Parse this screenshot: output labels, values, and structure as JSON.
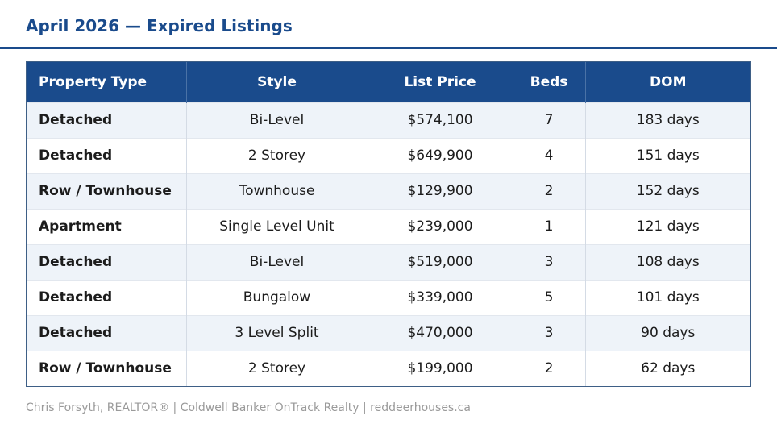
{
  "title": "April 2026 — Expired Listings",
  "table": {
    "headers": [
      "Property Type",
      "Style",
      "List Price",
      "Beds",
      "DOM"
    ],
    "rows": [
      [
        "Detached",
        "Bi-Level",
        "$574,100",
        "7",
        "183 days"
      ],
      [
        "Detached",
        "2 Storey",
        "$649,900",
        "4",
        "151 days"
      ],
      [
        "Row / Townhouse",
        "Townhouse",
        "$129,900",
        "2",
        "152 days"
      ],
      [
        "Apartment",
        "Single Level Unit",
        "$239,000",
        "1",
        "121 days"
      ],
      [
        "Detached",
        "Bi-Level",
        "$519,000",
        "3",
        "108 days"
      ],
      [
        "Detached",
        "Bungalow",
        "$339,000",
        "5",
        "101 days"
      ],
      [
        "Detached",
        "3 Level Split",
        "$470,000",
        "3",
        "90 days"
      ],
      [
        "Row / Townhouse",
        "2 Storey",
        "$199,000",
        "2",
        "62 days"
      ]
    ]
  },
  "footer": "Chris Forsyth, REALTOR® | Coldwell Banker OnTrack Realty | reddeerhouses.ca",
  "colors": {
    "accent": "#1a4b8c",
    "row_alt": "#eef3f9",
    "footer_text": "#9a9a9a"
  }
}
